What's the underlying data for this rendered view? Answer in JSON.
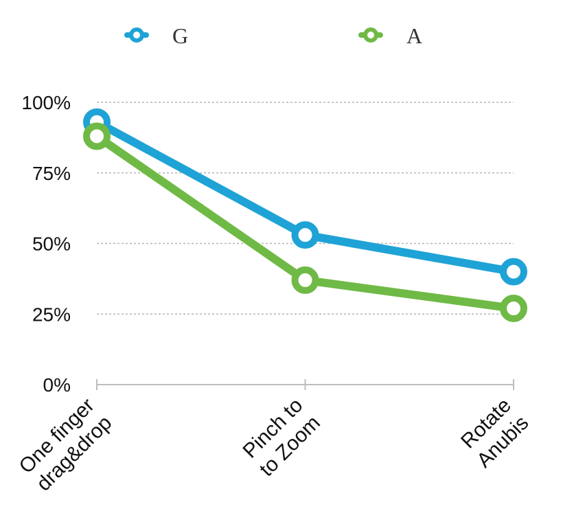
{
  "chart_data": {
    "type": "line",
    "categories": [
      [
        "One finger",
        "drag&drop"
      ],
      [
        "Pinch to",
        "to Zoom"
      ],
      [
        "Rotate",
        "Anubis"
      ]
    ],
    "series": [
      {
        "name": "G",
        "color": "#1fa3d6",
        "values": [
          93,
          53,
          40
        ]
      },
      {
        "name": "A",
        "color": "#6fba46",
        "values": [
          88,
          37,
          27
        ]
      }
    ],
    "yticks": [
      "0%",
      "25%",
      "50%",
      "75%",
      "100%"
    ],
    "ylim": [
      0,
      100
    ],
    "grid": true,
    "legend_position": "top"
  }
}
